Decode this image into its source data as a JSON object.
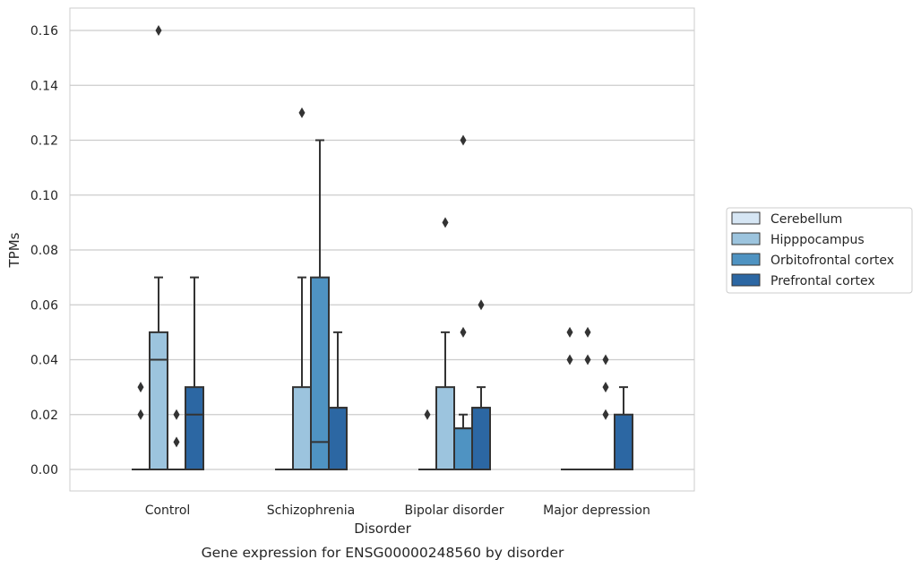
{
  "caption": "Gene expression for ENSG00000248560 by disorder",
  "colors": {
    "Cerebellum": "#d6e6f4",
    "Hipppocampus": "#9cc4de",
    "Orbitofrontal cortex": "#4f93c2",
    "Prefrontal cortex": "#2c67a3",
    "line": "#333333",
    "grid": "#cccccc",
    "frame": "#cccccc"
  },
  "chart_data": {
    "type": "box",
    "title": "",
    "xlabel": "Disorder",
    "ylabel": "TPMs",
    "ylim": [
      -0.008,
      0.168
    ],
    "yticks": [
      "0.00",
      "0.02",
      "0.04",
      "0.06",
      "0.08",
      "0.10",
      "0.12",
      "0.14",
      "0.16"
    ],
    "categories": [
      "Control",
      "Schizophrenia",
      "Bipolar disorder",
      "Major depression"
    ],
    "grid": true,
    "legend_position": "outside-right",
    "series": [
      {
        "name": "Cerebellum",
        "boxes": [
          {
            "q1": 0,
            "median": 0,
            "q3": 0,
            "whislo": 0,
            "whishi": 0,
            "fliers": [
              0.02,
              0.03
            ]
          },
          {
            "q1": 0,
            "median": 0,
            "q3": 0,
            "whislo": 0,
            "whishi": 0,
            "fliers": []
          },
          {
            "q1": 0,
            "median": 0,
            "q3": 0,
            "whislo": 0,
            "whishi": 0,
            "fliers": [
              0.02
            ]
          },
          {
            "q1": 0,
            "median": 0,
            "q3": 0,
            "whislo": 0,
            "whishi": 0,
            "fliers": [
              0.04,
              0.05
            ]
          }
        ]
      },
      {
        "name": "Hipppocampus",
        "boxes": [
          {
            "q1": 0,
            "median": 0.04,
            "q3": 0.05,
            "whislo": 0,
            "whishi": 0.07,
            "fliers": [
              0.16
            ]
          },
          {
            "q1": 0,
            "median": 0,
            "q3": 0.03,
            "whislo": 0,
            "whishi": 0.07,
            "fliers": [
              0.13
            ]
          },
          {
            "q1": 0,
            "median": 0,
            "q3": 0.03,
            "whislo": 0,
            "whishi": 0.05,
            "fliers": [
              0.09
            ]
          },
          {
            "q1": 0,
            "median": 0,
            "q3": 0,
            "whislo": 0,
            "whishi": 0,
            "fliers": [
              0.04,
              0.05
            ]
          }
        ]
      },
      {
        "name": "Orbitofrontal cortex",
        "boxes": [
          {
            "q1": 0,
            "median": 0,
            "q3": 0,
            "whislo": 0,
            "whishi": 0,
            "fliers": [
              0.01,
              0.02
            ]
          },
          {
            "q1": 0,
            "median": 0.01,
            "q3": 0.07,
            "whislo": 0,
            "whishi": 0.12,
            "fliers": []
          },
          {
            "q1": 0,
            "median": 0.015,
            "q3": 0.015,
            "whislo": 0,
            "whishi": 0.02,
            "fliers": [
              0.05,
              0.12
            ]
          },
          {
            "q1": 0,
            "median": 0,
            "q3": 0,
            "whislo": 0,
            "whishi": 0,
            "fliers": [
              0.02,
              0.03,
              0.04
            ]
          }
        ]
      },
      {
        "name": "Prefrontal cortex",
        "boxes": [
          {
            "q1": 0,
            "median": 0.02,
            "q3": 0.03,
            "whislo": 0,
            "whishi": 0.07,
            "fliers": []
          },
          {
            "q1": 0,
            "median": 0.0225,
            "q3": 0.0225,
            "whislo": 0,
            "whishi": 0.05,
            "fliers": []
          },
          {
            "q1": 0,
            "median": 0.0225,
            "q3": 0.0225,
            "whislo": 0,
            "whishi": 0.03,
            "fliers": [
              0.06
            ]
          },
          {
            "q1": 0,
            "median": 0,
            "q3": 0.02,
            "whislo": 0,
            "whishi": 0.03,
            "fliers": []
          }
        ]
      }
    ]
  }
}
